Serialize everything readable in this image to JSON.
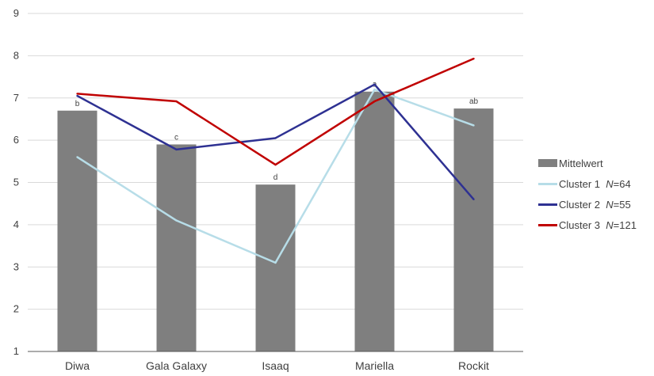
{
  "chart_data": {
    "type": "bar",
    "categories": [
      "Diwa",
      "Gala Galaxy",
      "Isaaq",
      "Mariella",
      "Rockit"
    ],
    "ylim": [
      1,
      9
    ],
    "yticks": [
      1,
      2,
      3,
      4,
      5,
      6,
      7,
      8,
      9
    ],
    "grid": true,
    "legend_position": "right",
    "bar_series": {
      "name": "Mittelwert",
      "values": [
        6.7,
        5.9,
        4.95,
        7.15,
        6.75
      ],
      "labels": [
        "b",
        "c",
        "d",
        "a",
        "ab"
      ],
      "color": "#7f7f7f"
    },
    "series": [
      {
        "name": "Cluster 1",
        "n_label": "N",
        "n_value": "=64",
        "type": "line",
        "color": "#b7dde8",
        "values": [
          5.6,
          4.1,
          3.1,
          7.2,
          6.35
        ]
      },
      {
        "name": "Cluster 2",
        "n_label": "N",
        "n_value": "=55",
        "type": "line",
        "color": "#2e3192",
        "values": [
          7.05,
          5.78,
          6.05,
          7.32,
          4.6
        ]
      },
      {
        "name": "Cluster 3",
        "n_label": "N",
        "n_value": "=121",
        "type": "line",
        "color": "#c00000",
        "values": [
          7.1,
          6.92,
          5.42,
          6.92,
          7.93
        ]
      }
    ]
  }
}
